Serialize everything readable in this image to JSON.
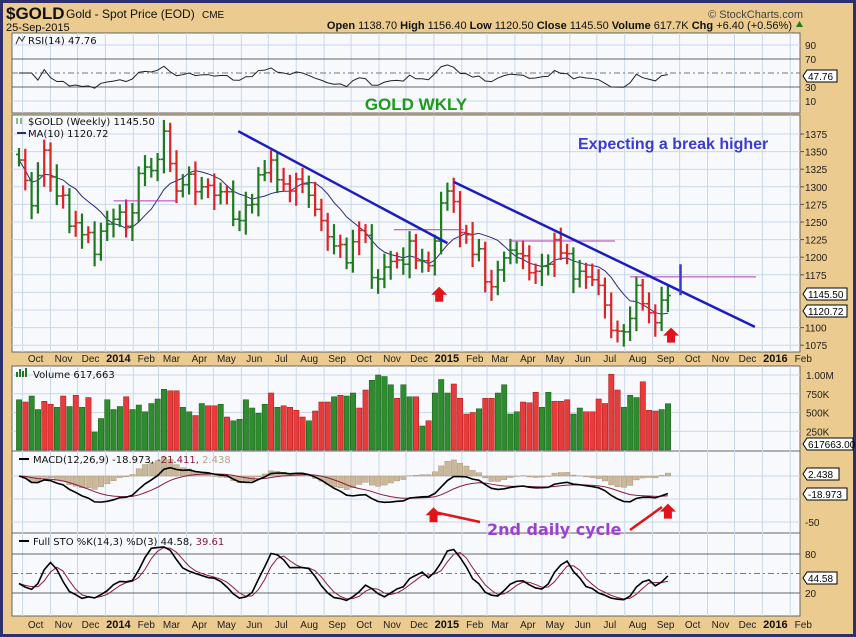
{
  "header": {
    "symbol": "$GOLD",
    "name": "Gold - Spot Price (EOD)",
    "exchange": "CME",
    "date": "25-Sep-2015",
    "brand": "© StockCharts.com",
    "open_label": "Open",
    "open": "1138.70",
    "high_label": "High",
    "high": "1156.40",
    "low_label": "Low",
    "low": "1120.50",
    "close_label": "Close",
    "close": "1145.50",
    "volume_label": "Volume",
    "volume": "617.7K",
    "chg_label": "Chg",
    "chg": "+6.40 (+0.56%)"
  },
  "colors": {
    "up": "#1f7a1f",
    "down": "#dd2424",
    "ma": "#2a2a7a",
    "trend": "#1c1cc0",
    "level": "#b040b0",
    "annot_red": "#e0141a",
    "title_green": "#1d9a1d",
    "note_blue": "#3b3bd0",
    "note_purple": "#9b3fd6"
  },
  "chart_data": {
    "type": "ohlc",
    "title": "GOLD WKLY",
    "start_week": "2013-09-27",
    "closes": [
      1338,
      1309,
      1273,
      1316,
      1352,
      1314,
      1287,
      1288,
      1244,
      1249,
      1232,
      1235,
      1204,
      1237,
      1247,
      1254,
      1264,
      1244,
      1263,
      1319,
      1328,
      1323,
      1339,
      1379,
      1333,
      1294,
      1303,
      1318,
      1293,
      1300,
      1302,
      1288,
      1293,
      1293,
      1254,
      1252,
      1274,
      1275,
      1317,
      1320,
      1338,
      1310,
      1304,
      1294,
      1311,
      1304,
      1288,
      1268,
      1252,
      1229,
      1216,
      1218,
      1192,
      1222,
      1238,
      1231,
      1171,
      1169,
      1186,
      1194,
      1196,
      1190,
      1223,
      1195,
      1195,
      1188,
      1223,
      1277,
      1294,
      1279,
      1235,
      1232,
      1204,
      1212,
      1165,
      1158,
      1182,
      1199,
      1210,
      1205,
      1202,
      1178,
      1180,
      1187,
      1190,
      1225,
      1206,
      1205,
      1169,
      1180,
      1172,
      1168,
      1160,
      1132,
      1096,
      1095,
      1094,
      1113,
      1160,
      1134,
      1121,
      1107,
      1139,
      1145.5
    ],
    "direction": "GRGGRRGRGRGRGGGGGRGGGGGGRRGGRGRRGRGGGGGGRGRRRRGRRRGRGGRRGGGGRGGRGRGGGRRRRGRRGGGGRRRGGRRRGGRRRRRRGGGRRRGG",
    "volume_millions": [
      0.67,
      0.64,
      0.72,
      0.54,
      0.65,
      0.61,
      0.57,
      0.72,
      0.58,
      0.73,
      0.57,
      0.7,
      0.24,
      0.42,
      0.67,
      0.54,
      0.58,
      0.71,
      0.54,
      0.6,
      0.51,
      0.62,
      0.68,
      0.81,
      0.79,
      0.79,
      0.57,
      0.51,
      0.46,
      0.62,
      0.59,
      0.59,
      0.61,
      0.44,
      0.39,
      0.41,
      0.67,
      0.56,
      0.49,
      0.61,
      0.76,
      0.57,
      0.59,
      0.57,
      0.53,
      0.44,
      0.39,
      0.52,
      0.64,
      0.64,
      0.71,
      0.73,
      0.72,
      0.76,
      0.56,
      0.8,
      0.93,
      1.0,
      0.98,
      0.87,
      0.69,
      0.87,
      0.71,
      0.71,
      0.32,
      0.39,
      0.76,
      0.94,
      0.76,
      0.88,
      0.69,
      0.48,
      0.5,
      0.55,
      0.69,
      0.69,
      0.76,
      0.87,
      0.48,
      0.51,
      0.64,
      0.63,
      0.77,
      0.57,
      0.77,
      0.65,
      0.65,
      0.67,
      0.48,
      0.56,
      0.51,
      0.51,
      0.68,
      0.62,
      1.01,
      0.8,
      0.57,
      0.73,
      0.7,
      0.91,
      0.53,
      0.52,
      0.54,
      0.617663
    ],
    "price_axis": {
      "ticks": [
        "1375",
        "1350",
        "1325",
        "1300",
        "1275",
        "1250",
        "1225",
        "1200",
        "1175",
        "1100",
        "1075"
      ],
      "range": [
        1060,
        1395
      ]
    },
    "volume_axis": {
      "ticks": [
        "1.00M",
        "750K",
        "500K",
        "250K"
      ]
    },
    "rsi_axis": {
      "ticks": [
        "90",
        "70",
        "30",
        "10"
      ]
    },
    "macd_axis": {
      "ticks": [
        "-50"
      ]
    },
    "sto_axis": {
      "ticks": [
        "80",
        "20"
      ]
    },
    "months": [
      {
        "label": "Oct",
        "date": "2013-10-01"
      },
      {
        "label": "Nov",
        "date": "2013-11-01"
      },
      {
        "label": "Dec",
        "date": "2013-12-01"
      },
      {
        "label": "2014",
        "date": "2014-01-01",
        "year": true
      },
      {
        "label": "Feb",
        "date": "2014-02-01"
      },
      {
        "label": "Mar",
        "date": "2014-03-01"
      },
      {
        "label": "Apr",
        "date": "2014-04-01"
      },
      {
        "label": "May",
        "date": "2014-05-01"
      },
      {
        "label": "Jun",
        "date": "2014-06-01"
      },
      {
        "label": "Jul",
        "date": "2014-07-01"
      },
      {
        "label": "Aug",
        "date": "2014-08-01"
      },
      {
        "label": "Sep",
        "date": "2014-09-01"
      },
      {
        "label": "Oct",
        "date": "2014-10-01"
      },
      {
        "label": "Nov",
        "date": "2014-11-01"
      },
      {
        "label": "Dec",
        "date": "2014-12-01"
      },
      {
        "label": "2015",
        "date": "2015-01-01",
        "year": true
      },
      {
        "label": "Feb",
        "date": "2015-02-01"
      },
      {
        "label": "Mar",
        "date": "2015-03-01"
      },
      {
        "label": "Apr",
        "date": "2015-04-01"
      },
      {
        "label": "May",
        "date": "2015-05-01"
      },
      {
        "label": "Jun",
        "date": "2015-06-01"
      },
      {
        "label": "Jul",
        "date": "2015-07-01"
      },
      {
        "label": "Aug",
        "date": "2015-08-01"
      },
      {
        "label": "Sep",
        "date": "2015-09-01"
      },
      {
        "label": "Oct",
        "date": "2015-10-01"
      },
      {
        "label": "Nov",
        "date": "2015-11-01"
      },
      {
        "label": "Dec",
        "date": "2015-12-01"
      },
      {
        "label": "2016",
        "date": "2016-01-01",
        "year": true
      },
      {
        "label": "Feb",
        "date": "2016-02-01"
      }
    ],
    "trendlines": [
      {
        "from": [
          34.8,
          1379
        ],
        "to": [
          68,
          1220
        ]
      },
      {
        "from": [
          69,
          1307
        ],
        "to": [
          116.8,
          1101
        ]
      }
    ],
    "levels": [
      {
        "price": 1280,
        "from": 15,
        "to": 25
      },
      {
        "price": 1239,
        "from": 59.5,
        "to": 70.6
      },
      {
        "price": 1223,
        "from": 78,
        "to": 94.6
      },
      {
        "price": 1172,
        "from": 97,
        "to": 117
      }
    ],
    "break_mark": {
      "week": 105,
      "from": 1146,
      "to": 1190
    },
    "price_arrows": [
      {
        "week": 66.7,
        "price": 1158
      },
      {
        "week": 103.5,
        "price": 1100
      }
    ],
    "macd_arrows": [
      {
        "week": 65.8,
        "value": -34
      },
      {
        "week": 103,
        "value": -30
      }
    ]
  },
  "panels": {
    "rsi": {
      "label": "RSI(14) 47.76",
      "tag": "47.76"
    },
    "price": {
      "label": "$GOLD (Weekly) 1145.50",
      "ma_label": "MA(10) 1120.72",
      "tag_close": "1145.50",
      "tag_ma": "1120.72"
    },
    "volume": {
      "label": "Volume 617,663",
      "tag": "617663.00"
    },
    "macd": {
      "label_main": "MACD(12,26,9) -18.973,",
      "label_signal": "-21.411,",
      "label_hist": "2.438",
      "tag_hist": "2.438",
      "tag_macd": "-18.973"
    },
    "sto": {
      "label_main": "Full STO %K(14,3) %D(3) 44.58,",
      "label_d": "39.61",
      "tag": "44.58"
    }
  },
  "annotations": {
    "title": "GOLD WKLY",
    "note": "Expecting a break higher",
    "cycle": "2nd daily cycle"
  }
}
